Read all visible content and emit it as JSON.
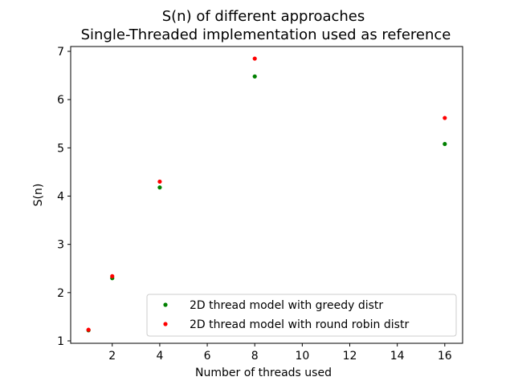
{
  "chart_data": {
    "type": "scatter",
    "title": "S(n) of different approaches",
    "subtitle": "Single-Threaded implementation used as reference",
    "xlabel": "Number of threads used",
    "ylabel": "S(n)",
    "xlim": [
      0.25,
      16.75
    ],
    "ylim": [
      0.95,
      7.1
    ],
    "xticks": [
      2,
      4,
      6,
      8,
      10,
      12,
      14,
      16
    ],
    "yticks": [
      1,
      2,
      3,
      4,
      5,
      6,
      7
    ],
    "grid": false,
    "legend_position": "lower-right",
    "series": [
      {
        "name": "2D thread model with greedy distr",
        "color": "#008000",
        "x": [
          1,
          2,
          4,
          8,
          16
        ],
        "y": [
          1.22,
          2.3,
          4.18,
          6.48,
          5.08
        ]
      },
      {
        "name": "2D thread model with round robin distr",
        "color": "#ff0000",
        "x": [
          1,
          2,
          4,
          8,
          16
        ],
        "y": [
          1.23,
          2.34,
          4.3,
          6.85,
          5.62
        ]
      }
    ]
  }
}
